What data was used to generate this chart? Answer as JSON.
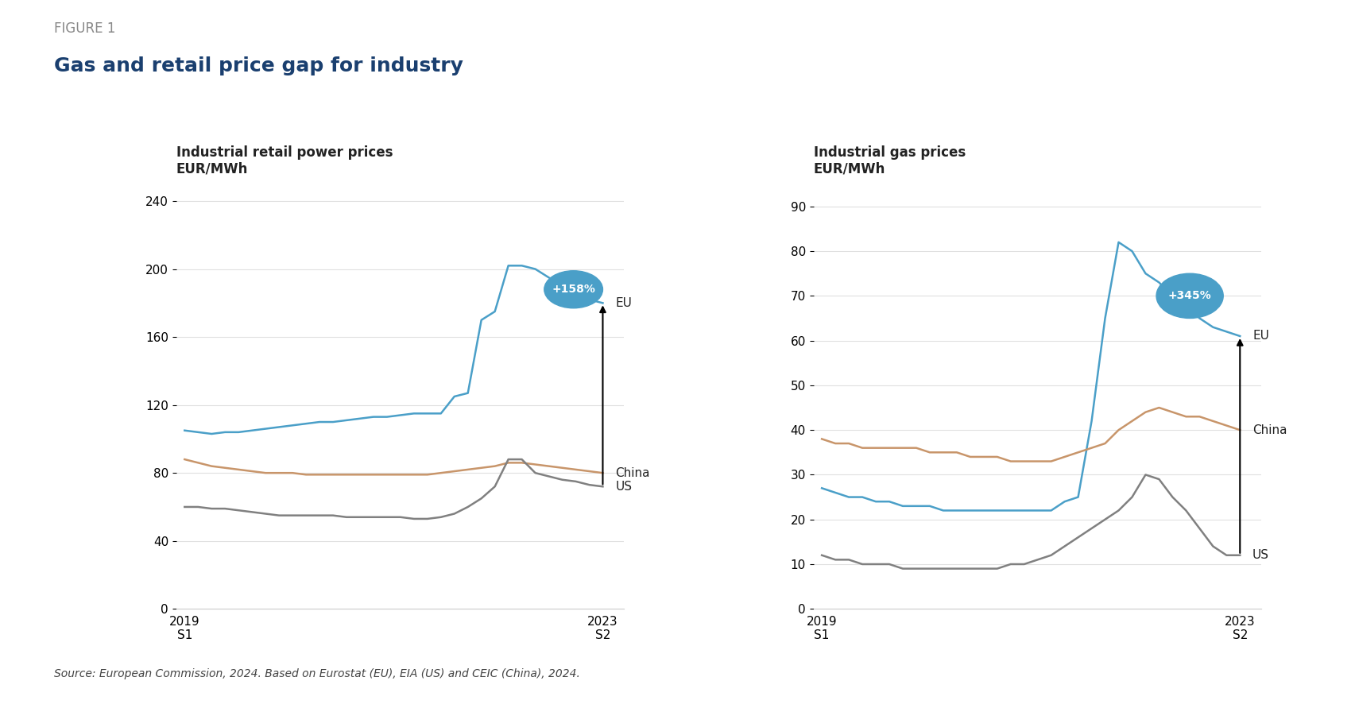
{
  "figure_label": "FIGURE 1",
  "figure_title": "Gas and retail price gap for industry",
  "source_text": "Source: European Commission, 2024. Based on Eurostat (EU), EIA (US) and CEIC (China), 2024.",
  "chart1": {
    "title": "Industrial retail power prices",
    "unit": "EUR/MWh",
    "ylim": [
      0,
      250
    ],
    "yticks": [
      0,
      40,
      80,
      120,
      160,
      200,
      240
    ],
    "annotation_pct": "+158%",
    "eu_color": "#4a9fc8",
    "china_color": "#c8956a",
    "us_color": "#808080",
    "eu": [
      105,
      104,
      103,
      104,
      104,
      105,
      106,
      107,
      108,
      109,
      110,
      110,
      111,
      112,
      113,
      113,
      114,
      115,
      115,
      115,
      125,
      127,
      170,
      175,
      202,
      202,
      200,
      195,
      190,
      185,
      182,
      180
    ],
    "china": [
      88,
      86,
      84,
      83,
      82,
      81,
      80,
      80,
      80,
      79,
      79,
      79,
      79,
      79,
      79,
      79,
      79,
      79,
      79,
      80,
      81,
      82,
      83,
      84,
      86,
      86,
      85,
      84,
      83,
      82,
      81,
      80
    ],
    "us": [
      60,
      60,
      59,
      59,
      58,
      57,
      56,
      55,
      55,
      55,
      55,
      55,
      54,
      54,
      54,
      54,
      54,
      53,
      53,
      54,
      56,
      60,
      65,
      72,
      88,
      88,
      80,
      78,
      76,
      75,
      73,
      72
    ]
  },
  "chart2": {
    "title": "Industrial gas prices",
    "unit": "EUR/MWh",
    "ylim": [
      0,
      95
    ],
    "yticks": [
      0,
      10,
      20,
      30,
      40,
      50,
      60,
      70,
      80,
      90
    ],
    "annotation_pct": "+345%",
    "eu_color": "#4a9fc8",
    "china_color": "#c8956a",
    "us_color": "#808080",
    "eu": [
      27,
      26,
      25,
      25,
      24,
      24,
      23,
      23,
      23,
      22,
      22,
      22,
      22,
      22,
      22,
      22,
      22,
      22,
      24,
      25,
      42,
      65,
      82,
      80,
      75,
      73,
      70,
      68,
      65,
      63,
      62,
      61
    ],
    "china": [
      38,
      37,
      37,
      36,
      36,
      36,
      36,
      36,
      35,
      35,
      35,
      34,
      34,
      34,
      33,
      33,
      33,
      33,
      34,
      35,
      36,
      37,
      40,
      42,
      44,
      45,
      44,
      43,
      43,
      42,
      41,
      40
    ],
    "us": [
      12,
      11,
      11,
      10,
      10,
      10,
      9,
      9,
      9,
      9,
      9,
      9,
      9,
      9,
      10,
      10,
      11,
      12,
      14,
      16,
      18,
      20,
      22,
      25,
      30,
      29,
      25,
      22,
      18,
      14,
      12,
      12
    ]
  },
  "x_labels_start": "2019\nS1",
  "x_labels_end": "2023\nS2",
  "background_color": "#ffffff",
  "figure_label_color": "#888888",
  "title_color": "#1a3f6f",
  "n_points": 32
}
